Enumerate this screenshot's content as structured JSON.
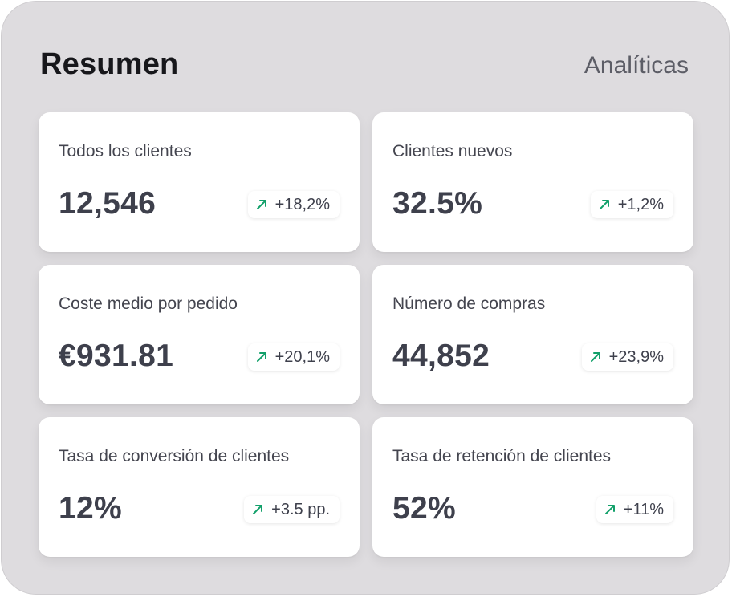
{
  "header": {
    "title": "Resumen",
    "link_label": "Analíticas"
  },
  "colors": {
    "panel_bg": "#dedcdf",
    "card_bg": "#ffffff",
    "trend_up": "#12a06a",
    "text_dark": "#3e404c"
  },
  "cards": [
    {
      "label": "Todos los clientes",
      "value": "12,546",
      "change": "+18,2%",
      "trend_icon": "arrow-up-right-icon"
    },
    {
      "label": "Clientes nuevos",
      "value": "32.5%",
      "change": "+1,2%",
      "trend_icon": "arrow-up-right-icon"
    },
    {
      "label": "Coste medio por pedido",
      "value": "€931.81",
      "change": "+20,1%",
      "trend_icon": "arrow-up-right-icon"
    },
    {
      "label": "Número de compras",
      "value": "44,852",
      "change": "+23,9%",
      "trend_icon": "arrow-up-right-icon"
    },
    {
      "label": "Tasa de conversión de clientes",
      "value": "12%",
      "change": "+3.5 pp.",
      "trend_icon": "arrow-up-right-icon"
    },
    {
      "label": "Tasa de retención de clientes",
      "value": "52%",
      "change": "+11%",
      "trend_icon": "arrow-up-right-icon"
    }
  ]
}
